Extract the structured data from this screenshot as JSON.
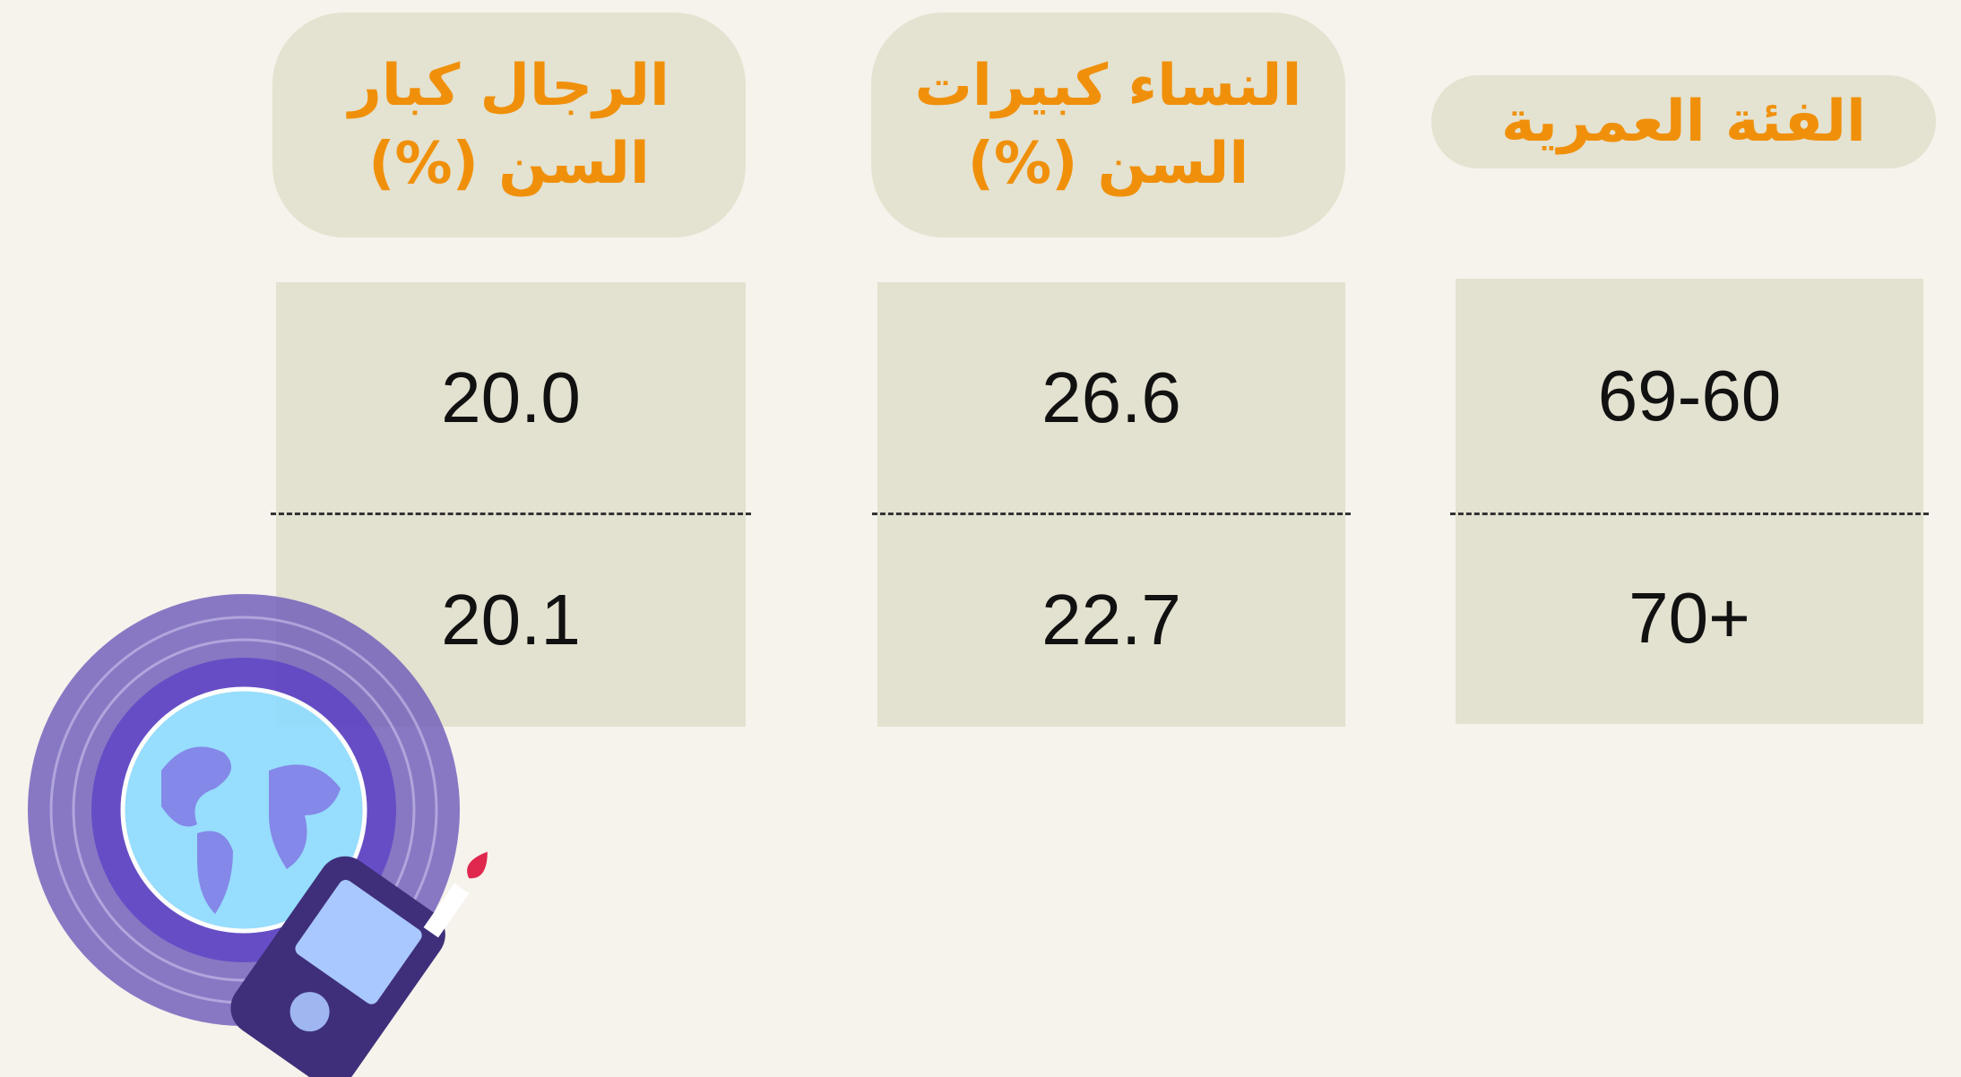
{
  "table": {
    "headers": [
      "الفئة العمرية",
      "النساء كبيرات السن (%)",
      "الرجال كبار السن (%)"
    ],
    "rows": [
      [
        "69-60",
        "26.6",
        "20.0"
      ],
      [
        "70+",
        "22.7",
        "20.1"
      ]
    ]
  }
}
